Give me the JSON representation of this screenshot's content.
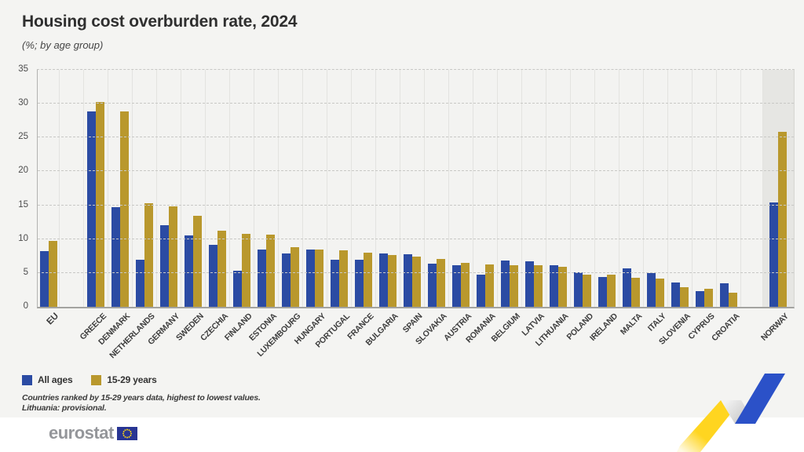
{
  "title": "Housing cost overburden rate, 2024",
  "subtitle": "(%; by age group)",
  "colors": {
    "all_ages": "#2b4ba3",
    "youth": "#b9982d",
    "norway_band": "#e6e6e3",
    "ribbon_yellow": "#ffd520",
    "ribbon_blue": "#2b51c8",
    "eu_flag_blue": "#283593",
    "eu_flag_stars": "#f7d117"
  },
  "chart_data": {
    "type": "bar",
    "title": "Housing cost overburden rate, 2024",
    "subtitle": "(%; by age group)",
    "ylabel": "%",
    "ylim": [
      0,
      35
    ],
    "yticks": [
      0,
      5,
      10,
      15,
      20,
      25,
      30,
      35
    ],
    "grid": "horizontal-dashed",
    "legend_position": "bottom-left",
    "highlighted_category": "NORWAY",
    "gap_after": [
      "EU",
      "CROATIA"
    ],
    "categories": [
      "EU",
      "GREECE",
      "DENMARK",
      "NETHERLANDS",
      "GERMANY",
      "SWEDEN",
      "CZECHIA",
      "FINLAND",
      "ESTONIA",
      "LUXEMBOURG",
      "HUNGARY",
      "PORTUGAL",
      "FRANCE",
      "BULGARIA",
      "SPAIN",
      "SLOVAKIA",
      "AUSTRIA",
      "ROMANIA",
      "BELGIUM",
      "LATVIA",
      "LITHUANIA",
      "POLAND",
      "IRELAND",
      "MALTA",
      "ITALY",
      "SLOVENIA",
      "CYPRUS",
      "CROATIA",
      "NORWAY"
    ],
    "series": [
      {
        "name": "All ages",
        "values": [
          8.2,
          28.9,
          14.7,
          6.9,
          12.0,
          10.6,
          9.2,
          5.3,
          8.5,
          7.9,
          8.5,
          6.9,
          7.0,
          7.9,
          7.8,
          6.4,
          6.2,
          4.7,
          6.8,
          6.7,
          6.1,
          5.1,
          4.4,
          5.7,
          5.0,
          3.6,
          2.3,
          3.5,
          15.4
        ]
      },
      {
        "name": "15-29 years",
        "values": [
          9.7,
          30.2,
          28.9,
          15.3,
          14.8,
          13.5,
          11.3,
          10.8,
          10.7,
          8.8,
          8.5,
          8.4,
          8.0,
          7.7,
          7.4,
          7.1,
          6.5,
          6.3,
          6.2,
          6.2,
          5.9,
          4.8,
          4.7,
          4.3,
          4.2,
          2.9,
          2.7,
          2.1,
          25.8
        ]
      }
    ]
  },
  "legend": {
    "items": [
      {
        "label": "All ages",
        "color": "#2b4ba3"
      },
      {
        "label": "15-29 years",
        "color": "#b9982d"
      }
    ]
  },
  "footnotes": {
    "line1": "Countries ranked by 15-29 years data, highest to lowest values.",
    "line2": "Lithuania: provisional."
  },
  "footer": {
    "logo_text": "eurostat"
  }
}
